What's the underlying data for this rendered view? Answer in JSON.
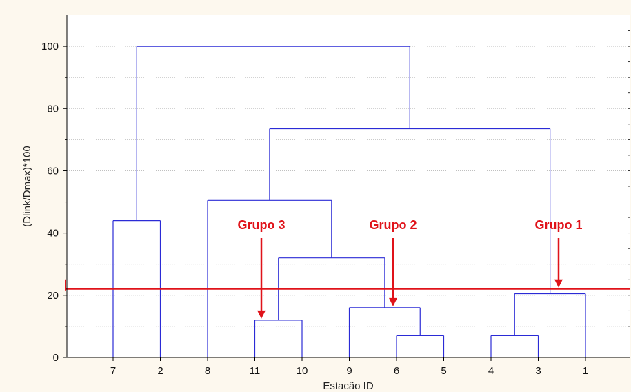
{
  "chart_data": {
    "type": "dendrogram",
    "xlabel": "Estacão ID",
    "ylabel": "(Dlink/Dmax)*100",
    "ylim": [
      0,
      110
    ],
    "yticks": [
      0,
      20,
      40,
      60,
      80,
      100
    ],
    "leaf_order": [
      "7",
      "2",
      "8",
      "11",
      "10",
      "9",
      "6",
      "5",
      "4",
      "3",
      "1"
    ],
    "merges": [
      {
        "left": "6",
        "right": "5",
        "height": 7
      },
      {
        "left": "4",
        "right": "3",
        "height": 7
      },
      {
        "left": "11",
        "right": "10",
        "height": 12
      },
      {
        "left": "9",
        "right": "6+5",
        "height": 16
      },
      {
        "left": "4+3",
        "right": "1",
        "height": 20.5
      },
      {
        "left": "11+10",
        "right": "9+6+5",
        "height": 32
      },
      {
        "left": "7",
        "right": "2",
        "height": 44
      },
      {
        "left": "8",
        "right": "11+10+9+6+5",
        "height": 50.5
      },
      {
        "left": "8+11+10+9+6+5",
        "right": "4+3+1",
        "height": 73.5
      },
      {
        "left": "7+2",
        "right": "rest",
        "height": 100
      }
    ],
    "cut_line": 22,
    "annotations": [
      {
        "text": "Grupo 3",
        "target_height": 12,
        "near_leaf": "11"
      },
      {
        "text": "Grupo 2",
        "target_height": 16,
        "near_leaf": "6"
      },
      {
        "text": "Grupo 1",
        "target_height": 22,
        "near_leaf": "3"
      }
    ],
    "colors": {
      "links": "#2b2bd6",
      "cut_line": "#e0131a",
      "annotation": "#e0131a",
      "grid": "#b8b8b8",
      "plot_bg": "#ffffff",
      "page_bg": "#fdf8ee"
    },
    "grid": true
  }
}
